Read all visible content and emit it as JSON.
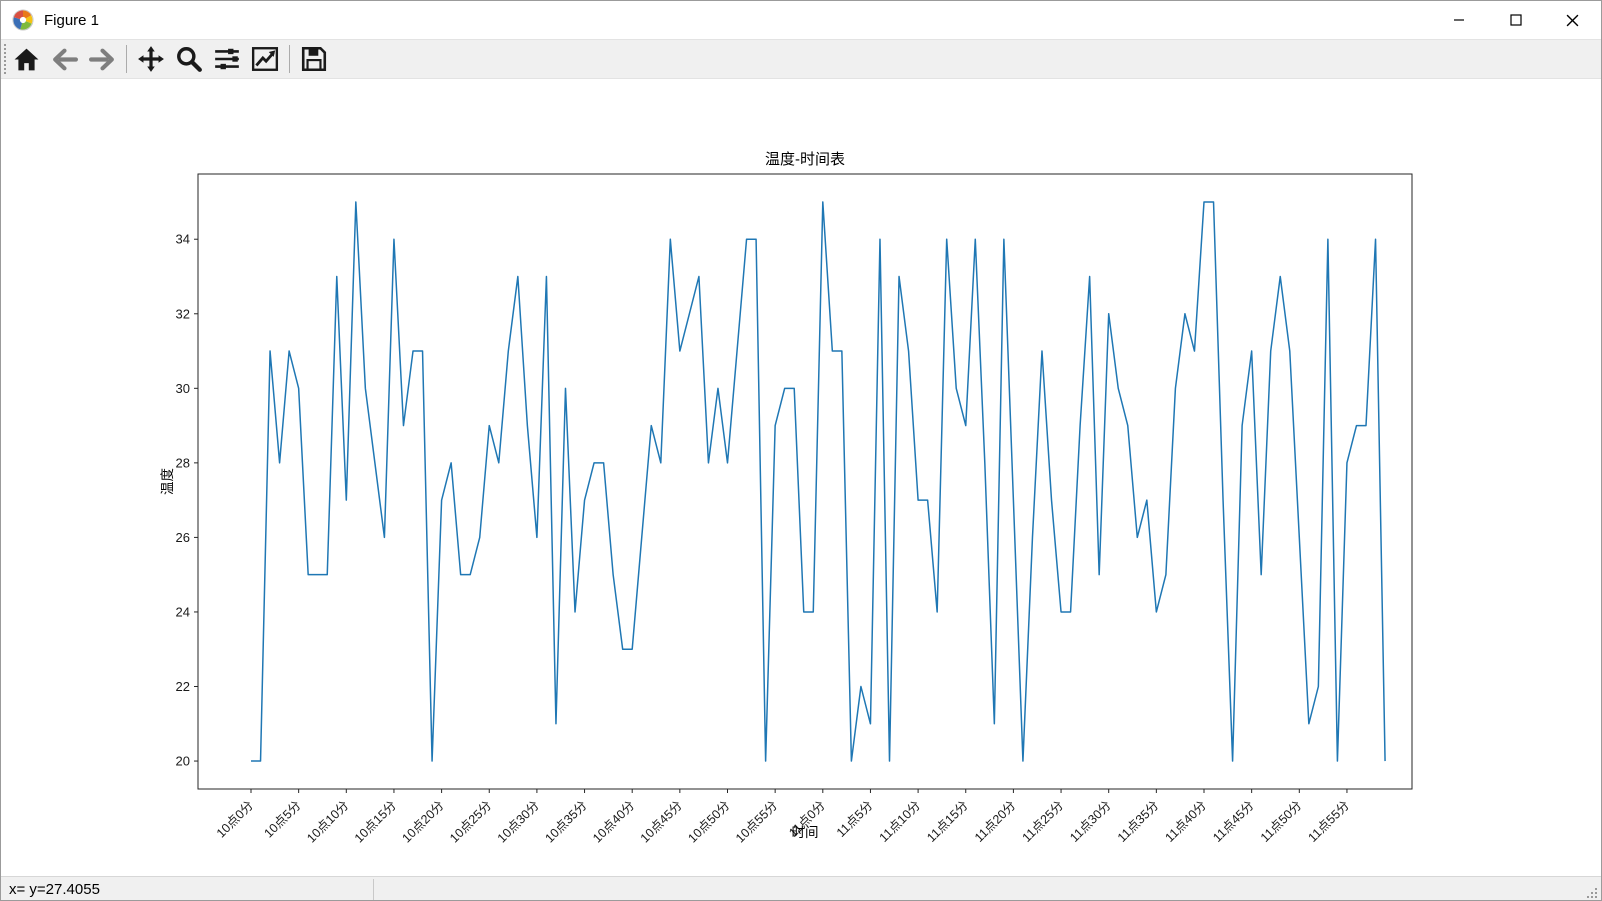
{
  "window": {
    "title": "Figure 1"
  },
  "toolbar": {
    "buttons": [
      {
        "name": "home",
        "icon": "home-icon"
      },
      {
        "name": "back",
        "icon": "arrow-left-icon",
        "disabled": true
      },
      {
        "name": "forward",
        "icon": "arrow-right-icon",
        "disabled": true
      },
      {
        "name": "pan",
        "icon": "move-icon"
      },
      {
        "name": "zoom",
        "icon": "magnifier-icon"
      },
      {
        "name": "configure-subplots",
        "icon": "sliders-icon"
      },
      {
        "name": "edit-axis",
        "icon": "line-chart-icon"
      },
      {
        "name": "save",
        "icon": "floppy-disk-icon"
      }
    ]
  },
  "statusbar": {
    "text": "x= y=27.4055"
  },
  "chart_data": {
    "type": "line",
    "title": "温度-时间表",
    "xlabel": "时间",
    "ylabel": "温度",
    "line_color": "#1f77b4",
    "background": "#ffffff",
    "grid": false,
    "legend": null,
    "y_ticks": [
      20,
      22,
      24,
      26,
      28,
      30,
      32,
      34
    ],
    "ylim": [
      19.25,
      35.75
    ],
    "x_tick_step": 5,
    "x_tick_labels": [
      "10点0分",
      "10点5分",
      "10点10分",
      "10点15分",
      "10点20分",
      "10点25分",
      "10点30分",
      "10点35分",
      "10点40分",
      "10点45分",
      "10点50分",
      "10点55分",
      "11点0分",
      "11点5分",
      "11点10分",
      "11点15分",
      "11点20分",
      "11点25分",
      "11点30分",
      "11点35分",
      "11点40分",
      "11点45分",
      "11点50分",
      "11点55分"
    ],
    "values": [
      20,
      20,
      31,
      28,
      31,
      30,
      25,
      25,
      25,
      33,
      27,
      35,
      30,
      28,
      26,
      34,
      29,
      31,
      31,
      20,
      27,
      28,
      25,
      25,
      26,
      29,
      28,
      31,
      33,
      29,
      26,
      33,
      21,
      30,
      24,
      27,
      28,
      28,
      25,
      23,
      23,
      26,
      29,
      28,
      34,
      31,
      32,
      33,
      28,
      30,
      28,
      31,
      34,
      34,
      20,
      29,
      30,
      30,
      24,
      24,
      35,
      31,
      31,
      20,
      22,
      21,
      34,
      20,
      33,
      31,
      27,
      27,
      24,
      34,
      30,
      29,
      34,
      28,
      21,
      34,
      27,
      20,
      26,
      31,
      27,
      24,
      24,
      29,
      33,
      25,
      32,
      30,
      29,
      26,
      27,
      24,
      25,
      30,
      32,
      31,
      35,
      35,
      27,
      20,
      29,
      31,
      25,
      31,
      33,
      31,
      26,
      21,
      22,
      34,
      20,
      28,
      29,
      29,
      34,
      20
    ]
  }
}
